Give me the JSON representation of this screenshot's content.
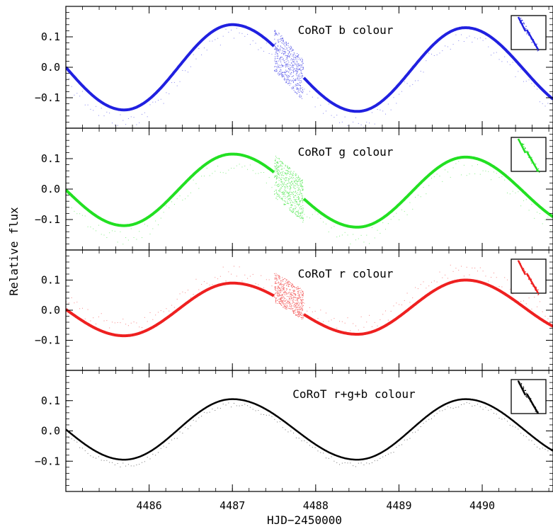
{
  "figure": {
    "xlabel": "HJD−2450000",
    "ylabel": "Relative flux"
  },
  "chart_data": {
    "type": "scatter",
    "xlim": [
      4485.0,
      4490.85
    ],
    "ylim": [
      -0.2,
      0.2
    ],
    "x_ticks": [
      4486,
      4487,
      4488,
      4489,
      4490
    ],
    "x_tick_labels": [
      "4486",
      "4487",
      "4488",
      "4489",
      "4490"
    ],
    "y_ticks": [
      0.1,
      0.0,
      -0.1
    ],
    "y_tick_labels": [
      "0.1",
      "0.0",
      "−0.1"
    ],
    "panels": [
      {
        "name": "blue",
        "label": "CoRoT b colour",
        "color": "#2020e0",
        "maxima": [
          {
            "x": 4487.0,
            "y": 0.14
          },
          {
            "x": 4489.8,
            "y": 0.13
          }
        ],
        "minima": [
          {
            "x": 4485.7,
            "y": -0.14
          },
          {
            "x": 4488.5,
            "y": -0.145
          }
        ],
        "noisy_interval": [
          4487.5,
          4487.85
        ],
        "inset": true
      },
      {
        "name": "green",
        "label": "CoRoT g colour",
        "color": "#22e022",
        "maxima": [
          {
            "x": 4487.0,
            "y": 0.115
          },
          {
            "x": 4489.8,
            "y": 0.105
          }
        ],
        "minima": [
          {
            "x": 4485.7,
            "y": -0.12
          },
          {
            "x": 4488.5,
            "y": -0.125
          }
        ],
        "noisy_interval": [
          4487.5,
          4487.85
        ],
        "inset": true
      },
      {
        "name": "red",
        "label": "CoRoT r colour",
        "color": "#ee2020",
        "maxima": [
          {
            "x": 4487.0,
            "y": 0.09
          },
          {
            "x": 4489.8,
            "y": 0.1
          }
        ],
        "minima": [
          {
            "x": 4485.7,
            "y": -0.085
          },
          {
            "x": 4488.5,
            "y": -0.08
          }
        ],
        "noisy_interval": [
          4487.5,
          4487.85
        ],
        "inset": true
      },
      {
        "name": "total",
        "label": "CoRoT r+g+b colour",
        "color": "#000000",
        "maxima": [
          {
            "x": 4487.0,
            "y": 0.105
          },
          {
            "x": 4489.8,
            "y": 0.105
          }
        ],
        "minima": [
          {
            "x": 4485.7,
            "y": -0.095
          },
          {
            "x": 4488.5,
            "y": -0.095
          }
        ],
        "noisy_interval": null,
        "inset": true
      }
    ]
  }
}
